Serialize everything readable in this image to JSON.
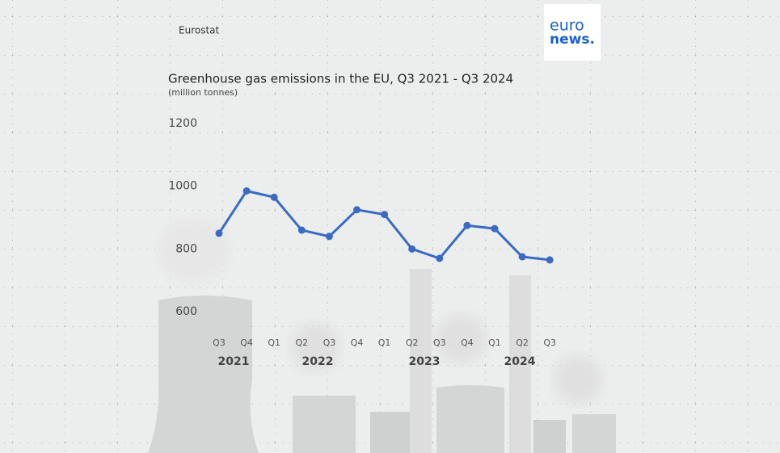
{
  "source": "Eurostat",
  "logo": {
    "line1": "euro",
    "line2": "news."
  },
  "chart_data": {
    "type": "line",
    "title": "Greenhouse gas emissions in the EU, Q3 2021 - Q3 2024",
    "subtitle": "(million tonnes)",
    "categories": [
      "Q3",
      "Q4",
      "Q1",
      "Q2",
      "Q3",
      "Q4",
      "Q1",
      "Q2",
      "Q3",
      "Q4",
      "Q1",
      "Q2",
      "Q3"
    ],
    "year_labels": [
      "2021",
      "2022",
      "2023",
      "2024"
    ],
    "series": [
      {
        "name": "Greenhouse gas emissions",
        "color": "#3a6bc4",
        "values": [
          850,
          985,
          965,
          860,
          840,
          925,
          910,
          800,
          770,
          875,
          865,
          775,
          765
        ]
      }
    ],
    "ylim": [
      600,
      1200
    ],
    "yticks": [
      600,
      800,
      1000,
      1200
    ]
  }
}
